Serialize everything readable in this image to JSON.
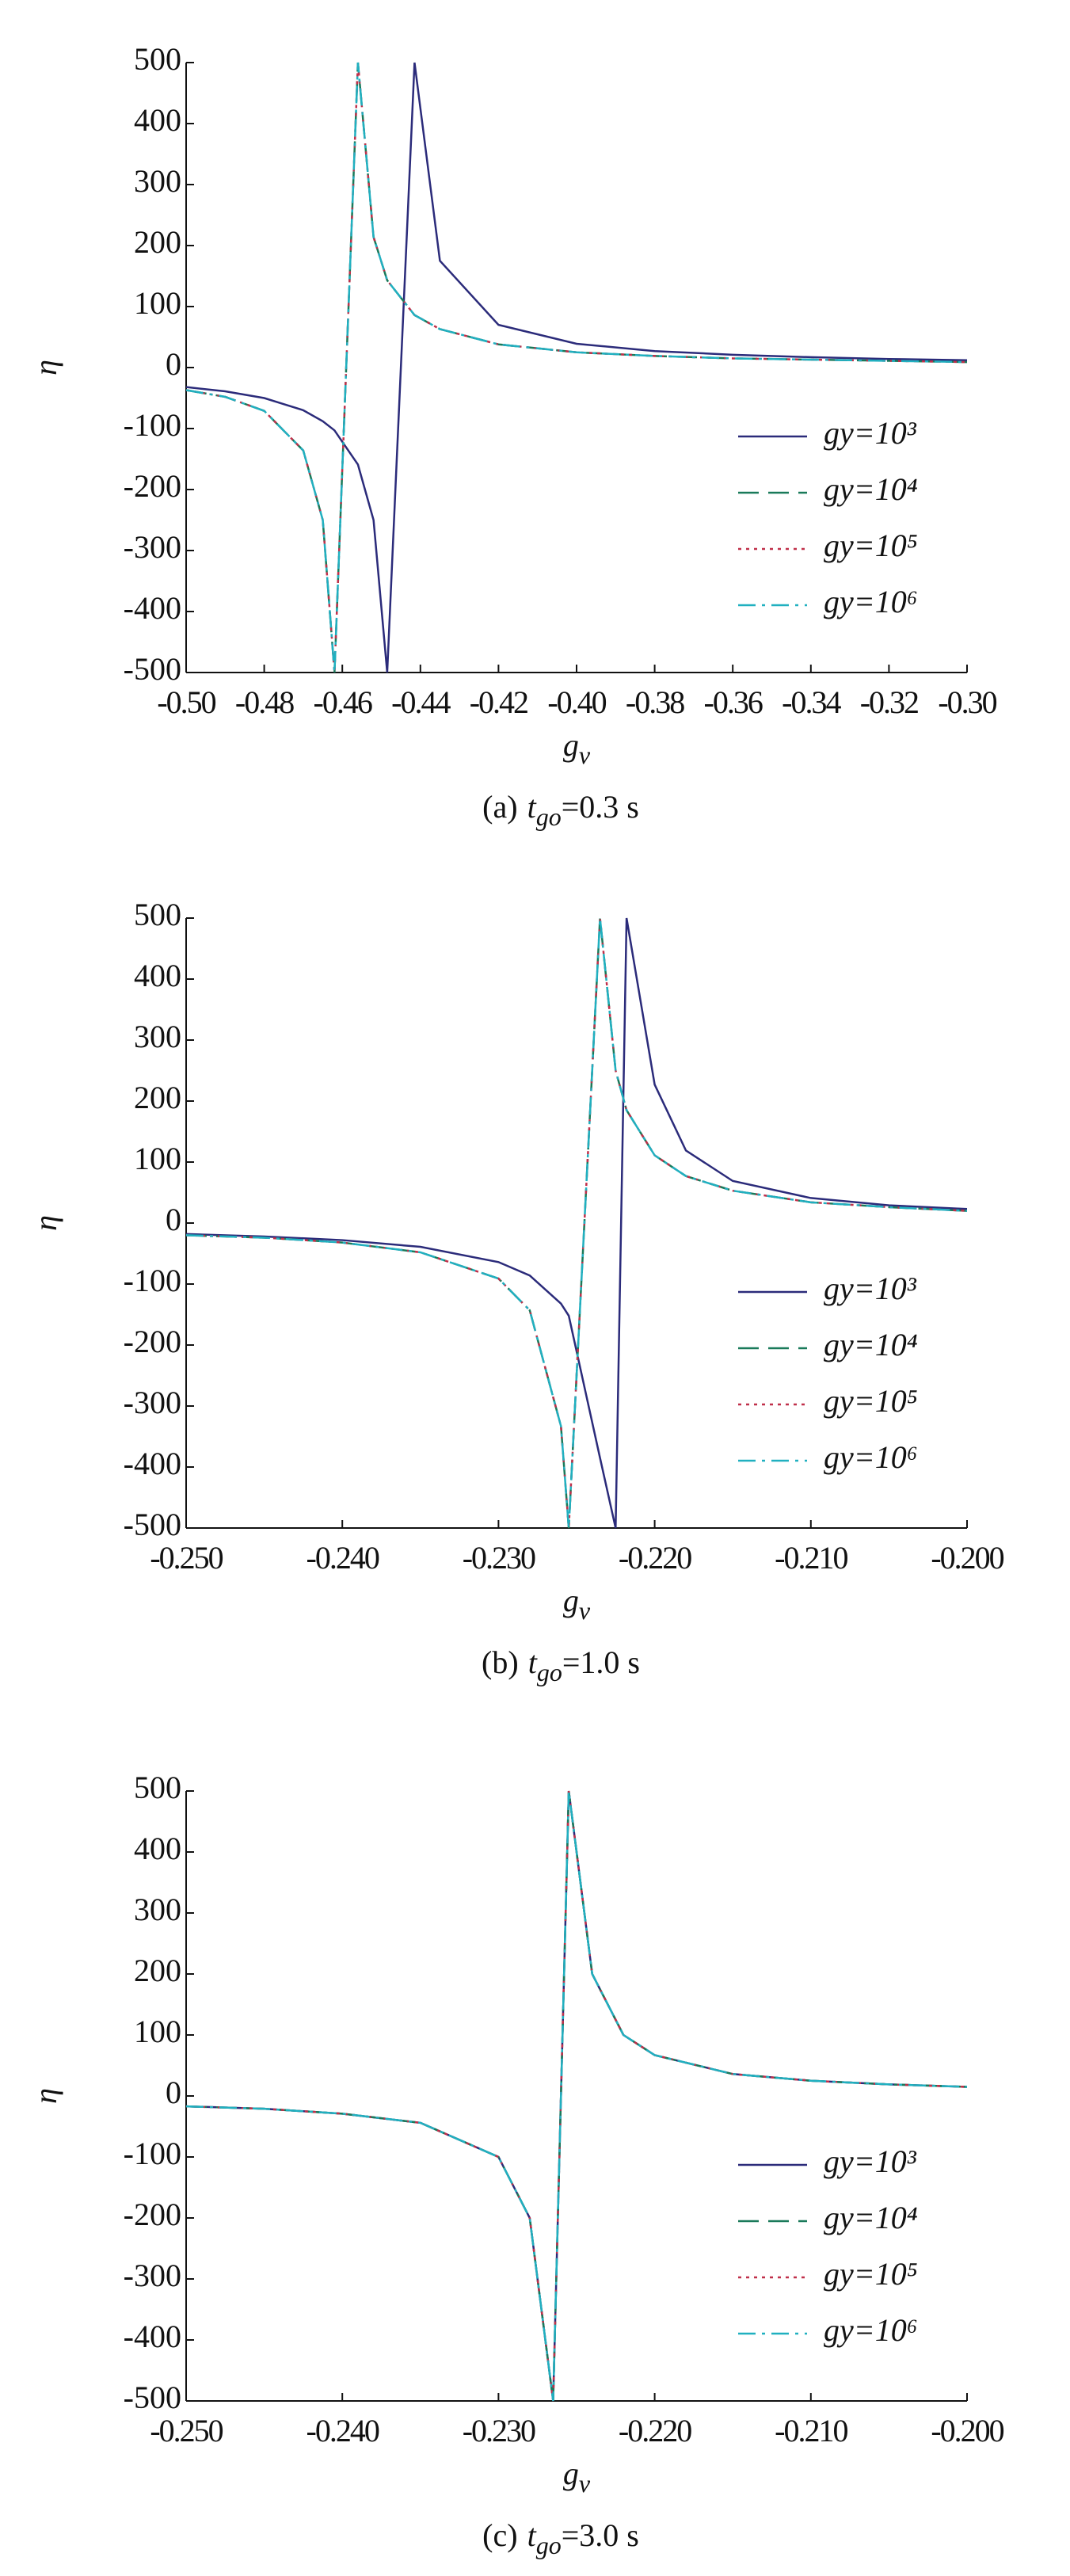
{
  "chart_data": [
    {
      "type": "line",
      "ylabel": "η",
      "xlabel": "g",
      "xlabel_sub": "v",
      "caption": {
        "prefix": "(a)",
        "var": "t",
        "sub": "go",
        "rest": "=0.3 s"
      },
      "xlim": [
        -0.5,
        -0.3
      ],
      "ylim": [
        -500,
        500
      ],
      "xticks": [
        {
          "value": -0.5,
          "label": "-0.50"
        },
        -0.48,
        -0.46,
        -0.44,
        -0.42,
        {
          "value": -0.4,
          "label": "-0.40"
        },
        -0.38,
        -0.36,
        -0.34,
        -0.32,
        {
          "value": -0.3,
          "label": "-0.30"
        }
      ],
      "yticks": [
        -500,
        -400,
        -300,
        -200,
        -100,
        0,
        100,
        200,
        300,
        400,
        500
      ],
      "x": [
        -0.5,
        -0.49,
        -0.48,
        -0.47,
        -0.465,
        -0.462,
        -0.456,
        -0.452,
        -0.4485,
        -0.4415,
        -0.435,
        -0.42,
        -0.4,
        -0.38,
        -0.36,
        -0.34,
        -0.32,
        -0.3
      ],
      "series": [
        {
          "name": "gy=10³",
          "color": "#2b2b7a",
          "dash": "solid",
          "values": [
            -32,
            -39,
            -50,
            -70,
            -88,
            -103,
            -159,
            -250,
            -500,
            500,
            175,
            70,
            39,
            27,
            21,
            17,
            14,
            12
          ]
        },
        {
          "name": "gy=10⁴",
          "color": "#1a7a5a",
          "dash": "dashed",
          "values": [
            -37,
            -48,
            -71,
            -136,
            -250,
            -500,
            500,
            214,
            143,
            86,
            63,
            38,
            25,
            19,
            15,
            13,
            11,
            9
          ]
        },
        {
          "name": "gy=10⁵",
          "color": "#c0304a",
          "dash": "dotted",
          "values": [
            -37,
            -48,
            -71,
            -136,
            -250,
            -500,
            500,
            214,
            143,
            86,
            63,
            38,
            25,
            19,
            15,
            13,
            11,
            9
          ]
        },
        {
          "name": "gy=10⁶",
          "color": "#20b0c0",
          "dash": "dashdot",
          "values": [
            -37,
            -48,
            -71,
            -136,
            -250,
            -500,
            500,
            214,
            143,
            86,
            63,
            38,
            25,
            19,
            15,
            13,
            11,
            9
          ]
        }
      ]
    },
    {
      "type": "line",
      "ylabel": "η",
      "xlabel": "g",
      "xlabel_sub": "v",
      "caption": {
        "prefix": "(b)",
        "var": "t",
        "sub": "go",
        "rest": "=1.0 s"
      },
      "xlim": [
        -0.25,
        -0.2
      ],
      "ylim": [
        -500,
        500
      ],
      "xticks": [
        {
          "value": -0.25,
          "label": "-0.250"
        },
        {
          "value": -0.24,
          "label": "-0.240"
        },
        {
          "value": -0.23,
          "label": "-0.230"
        },
        {
          "value": -0.22,
          "label": "-0.220"
        },
        {
          "value": -0.21,
          "label": "-0.210"
        },
        {
          "value": -0.2,
          "label": "-0.200"
        }
      ],
      "yticks": [
        -500,
        -400,
        -300,
        -200,
        -100,
        0,
        100,
        200,
        300,
        400,
        500
      ],
      "x": [
        -0.25,
        -0.245,
        -0.24,
        -0.235,
        -0.23,
        -0.228,
        -0.226,
        -0.2255,
        -0.2235,
        -0.2225,
        -0.2218,
        -0.22,
        -0.218,
        -0.215,
        -0.21,
        -0.205,
        -0.2
      ],
      "series": [
        {
          "name": "gy=10³",
          "color": "#2b2b7a",
          "dash": "solid",
          "values": [
            -18,
            -22,
            -28,
            -39,
            -64,
            -86,
            -132,
            -152,
            -385,
            -500,
            500,
            227,
            119,
            69,
            41,
            29,
            23
          ]
        },
        {
          "name": "gy=10⁴",
          "color": "#1a7a5a",
          "dash": "dashed",
          "values": [
            -20,
            -24,
            -32,
            -48,
            -91,
            -143,
            -333,
            -500,
            500,
            250,
            185,
            111,
            77,
            53,
            34,
            26,
            20
          ]
        },
        {
          "name": "gy=10⁵",
          "color": "#c0304a",
          "dash": "dotted",
          "values": [
            -20,
            -24,
            -32,
            -48,
            -91,
            -143,
            -333,
            -500,
            500,
            250,
            185,
            111,
            77,
            53,
            34,
            26,
            20
          ]
        },
        {
          "name": "gy=10⁶",
          "color": "#20b0c0",
          "dash": "dashdot",
          "values": [
            -20,
            -24,
            -32,
            -48,
            -91,
            -143,
            -333,
            -500,
            500,
            250,
            185,
            111,
            77,
            53,
            34,
            26,
            20
          ]
        }
      ]
    },
    {
      "type": "line",
      "ylabel": "η",
      "xlabel": "g",
      "xlabel_sub": "v",
      "caption": {
        "prefix": "(c)",
        "var": "t",
        "sub": "go",
        "rest": "=3.0 s"
      },
      "xlim": [
        -0.25,
        -0.2
      ],
      "ylim": [
        -500,
        500
      ],
      "xticks": [
        {
          "value": -0.25,
          "label": "-0.250"
        },
        {
          "value": -0.24,
          "label": "-0.240"
        },
        {
          "value": -0.23,
          "label": "-0.230"
        },
        {
          "value": -0.22,
          "label": "-0.220"
        },
        {
          "value": -0.21,
          "label": "-0.210"
        },
        {
          "value": -0.2,
          "label": "-0.200"
        }
      ],
      "yticks": [
        -500,
        -400,
        -300,
        -200,
        -100,
        0,
        100,
        200,
        300,
        400,
        500
      ],
      "x": [
        -0.25,
        -0.245,
        -0.24,
        -0.235,
        -0.23,
        -0.228,
        -0.227,
        -0.2265,
        -0.2255,
        -0.225,
        -0.224,
        -0.222,
        -0.22,
        -0.215,
        -0.21,
        -0.205,
        -0.2
      ],
      "series": [
        {
          "name": "gy=10³",
          "color": "#2b2b7a",
          "dash": "solid",
          "values": [
            -17,
            -21,
            -29,
            -44,
            -100,
            -200,
            -400,
            -500,
            500,
            400,
            200,
            100,
            67,
            36,
            25,
            19,
            15
          ]
        },
        {
          "name": "gy=10⁴",
          "color": "#1a7a5a",
          "dash": "dashed",
          "values": [
            -17,
            -21,
            -29,
            -44,
            -100,
            -200,
            -400,
            -500,
            500,
            400,
            200,
            100,
            67,
            36,
            25,
            19,
            15
          ]
        },
        {
          "name": "gy=10⁵",
          "color": "#c0304a",
          "dash": "dotted",
          "values": [
            -17,
            -21,
            -29,
            -44,
            -100,
            -200,
            -400,
            -500,
            500,
            400,
            200,
            100,
            67,
            36,
            25,
            19,
            15
          ]
        },
        {
          "name": "gy=10⁶",
          "color": "#20b0c0",
          "dash": "dashdot",
          "values": [
            -17,
            -21,
            -29,
            -44,
            -100,
            -200,
            -400,
            -500,
            500,
            400,
            200,
            100,
            67,
            36,
            25,
            19,
            15
          ]
        }
      ]
    }
  ]
}
